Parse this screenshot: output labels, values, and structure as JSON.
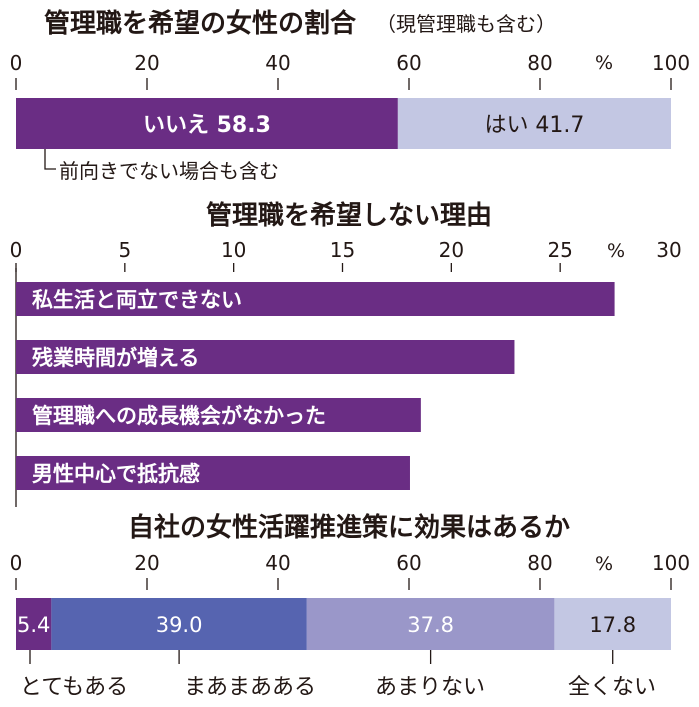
{
  "colors": {
    "purple": "#6a2d84",
    "lavender": "#c3c7e3",
    "blue": "#5664b0",
    "mauve": "#9a97c9",
    "text": "#231815",
    "white": "#ffffff"
  },
  "chart_data": [
    {
      "type": "bar",
      "stacked": true,
      "title": "管理職を希望の女性の割合",
      "subtitle": "（現管理職も含む）",
      "unit": "%",
      "xlim": [
        0,
        100
      ],
      "ticks": [
        "0",
        "20",
        "40",
        "60",
        "80",
        "100"
      ],
      "tick_values": [
        0,
        20,
        40,
        60,
        80,
        100
      ],
      "segments": [
        {
          "label": "いいえ",
          "value": 58.3,
          "value_text": "58.3",
          "color": "#6a2d84",
          "text_color": "#ffffff"
        },
        {
          "label": "はい",
          "value": 41.7,
          "value_text": "41.7",
          "color": "#c3c7e3",
          "text_color": "#231815"
        }
      ],
      "annotation": "前向きでない場合も含む"
    },
    {
      "type": "bar",
      "orientation": "horizontal",
      "title": "管理職を希望しない理由",
      "unit": "%",
      "xlim": [
        0,
        30
      ],
      "ticks": [
        "0",
        "5",
        "10",
        "15",
        "20",
        "25",
        "30"
      ],
      "tick_values": [
        0,
        5,
        10,
        15,
        20,
        25,
        30
      ],
      "categories": [
        "私生活と両立できない",
        "残業時間が増える",
        "管理職への成長機会がなかった",
        "男性中心で抵抗感"
      ],
      "values": [
        27.5,
        22.9,
        18.6,
        18.1
      ]
    },
    {
      "type": "bar",
      "stacked": true,
      "title": "自社の女性活躍推進策に効果はあるか",
      "unit": "%",
      "xlim": [
        0,
        100
      ],
      "ticks": [
        "0",
        "20",
        "40",
        "60",
        "80",
        "100"
      ],
      "tick_values": [
        0,
        20,
        40,
        60,
        80,
        100
      ],
      "segments": [
        {
          "label": "とてもある",
          "value": 5.4,
          "value_text": "5.4",
          "color": "#6a2d84",
          "text_color": "#ffffff"
        },
        {
          "label": "まあまあある",
          "value": 39.0,
          "value_text": "39.0",
          "color": "#5664b0",
          "text_color": "#ffffff"
        },
        {
          "label": "あまりない",
          "value": 37.8,
          "value_text": "37.8",
          "color": "#9a97c9",
          "text_color": "#ffffff"
        },
        {
          "label": "全くない",
          "value": 17.8,
          "value_text": "17.8",
          "color": "#c3c7e3",
          "text_color": "#231815"
        }
      ]
    }
  ]
}
